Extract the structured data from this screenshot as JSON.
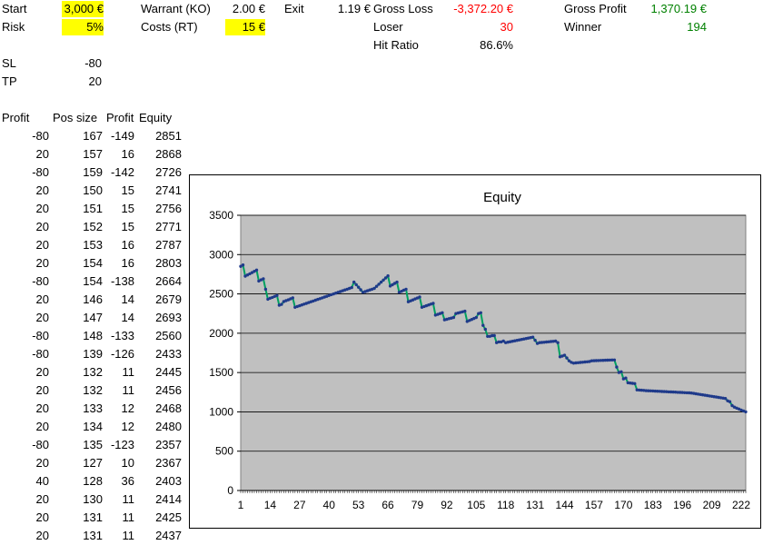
{
  "params": {
    "start_label": "Start",
    "start_value": "3,000 €",
    "risk_label": "Risk",
    "risk_value": "5%",
    "warrant_label": "Warrant (KO)",
    "warrant_value": "2.00 €",
    "costs_label": "Costs (RT)",
    "costs_value": "15 €",
    "exit_label": "Exit",
    "exit_value": "1.19 €",
    "sl_label": "SL",
    "sl_value": "-80",
    "tp_label": "TP",
    "tp_value": "20"
  },
  "stats": {
    "gross_loss_label": "Gross Loss",
    "gross_loss_value": "-3,372.20 €",
    "loser_label": "Loser",
    "loser_value": "30",
    "hit_ratio_label": "Hit Ratio",
    "hit_ratio_value": "86.6%",
    "gross_profit_label": "Gross Profit",
    "gross_profit_value": "1,370.19 €",
    "winner_label": "Winner",
    "winner_value": "194"
  },
  "table": {
    "headers": [
      "Profit",
      "Pos size",
      "Profit",
      "Equity"
    ],
    "rows": [
      [
        "-80",
        "167",
        "-149",
        "2851"
      ],
      [
        "20",
        "157",
        "16",
        "2868"
      ],
      [
        "-80",
        "159",
        "-142",
        "2726"
      ],
      [
        "20",
        "150",
        "15",
        "2741"
      ],
      [
        "20",
        "151",
        "15",
        "2756"
      ],
      [
        "20",
        "152",
        "15",
        "2771"
      ],
      [
        "20",
        "153",
        "16",
        "2787"
      ],
      [
        "20",
        "154",
        "16",
        "2803"
      ],
      [
        "-80",
        "154",
        "-138",
        "2664"
      ],
      [
        "20",
        "146",
        "14",
        "2679"
      ],
      [
        "20",
        "147",
        "14",
        "2693"
      ],
      [
        "-80",
        "148",
        "-133",
        "2560"
      ],
      [
        "-80",
        "139",
        "-126",
        "2433"
      ],
      [
        "20",
        "132",
        "11",
        "2445"
      ],
      [
        "20",
        "132",
        "11",
        "2456"
      ],
      [
        "20",
        "133",
        "12",
        "2468"
      ],
      [
        "20",
        "134",
        "12",
        "2480"
      ],
      [
        "-80",
        "135",
        "-123",
        "2357"
      ],
      [
        "20",
        "127",
        "10",
        "2367"
      ],
      [
        "40",
        "128",
        "36",
        "2403"
      ],
      [
        "20",
        "130",
        "11",
        "2414"
      ],
      [
        "20",
        "131",
        "11",
        "2425"
      ],
      [
        "20",
        "131",
        "11",
        "2437"
      ]
    ]
  },
  "chart_data": {
    "type": "line",
    "title": "Equity",
    "xlabel": "",
    "ylabel": "",
    "ylim": [
      0,
      3500
    ],
    "xlim": [
      1,
      224
    ],
    "yticks": [
      "0",
      "500",
      "1000",
      "1500",
      "2000",
      "2500",
      "3000",
      "3500"
    ],
    "xticks": [
      "1",
      "14",
      "27",
      "40",
      "53",
      "66",
      "79",
      "92",
      "105",
      "118",
      "131",
      "144",
      "157",
      "170",
      "183",
      "196",
      "209",
      "222"
    ],
    "grid": "horizontal",
    "legend": "none",
    "plot_background": "#c0c0c0",
    "line_color": "#00a060",
    "marker_color": "#1f3a8a",
    "series": [
      {
        "x": [
          1,
          2,
          3,
          4,
          5,
          6,
          7,
          8,
          9,
          10,
          11,
          12,
          13,
          14,
          15,
          16,
          17,
          18,
          19,
          20,
          21,
          22,
          23,
          24,
          25,
          30,
          40,
          50,
          51,
          55,
          60,
          66,
          67,
          70,
          71,
          74,
          75,
          80,
          81,
          86,
          87,
          90,
          91,
          95,
          96,
          100,
          101,
          105,
          106,
          107,
          108,
          109,
          110,
          111,
          112,
          113,
          114,
          115,
          116,
          117,
          118,
          130,
          132,
          133,
          140,
          141,
          142,
          143,
          144,
          146,
          147,
          148,
          155,
          156,
          165,
          166,
          167,
          168,
          169,
          170,
          171,
          172,
          175,
          176,
          180,
          200,
          215,
          216,
          217,
          218,
          219,
          224
        ],
        "values": [
          2851,
          2868,
          2726,
          2741,
          2756,
          2771,
          2787,
          2803,
          2664,
          2679,
          2693,
          2560,
          2433,
          2445,
          2456,
          2468,
          2480,
          2357,
          2367,
          2403,
          2414,
          2425,
          2437,
          2450,
          2330,
          2380,
          2480,
          2580,
          2650,
          2520,
          2570,
          2730,
          2600,
          2650,
          2520,
          2560,
          2400,
          2460,
          2330,
          2380,
          2230,
          2260,
          2170,
          2200,
          2250,
          2280,
          2150,
          2200,
          2250,
          2260,
          2100,
          2050,
          1960,
          1960,
          1970,
          1970,
          1880,
          1890,
          1890,
          1900,
          1880,
          1950,
          1870,
          1880,
          1900,
          1880,
          1700,
          1710,
          1720,
          1650,
          1630,
          1620,
          1640,
          1650,
          1660,
          1660,
          1570,
          1500,
          1510,
          1420,
          1430,
          1370,
          1360,
          1280,
          1270,
          1240,
          1170,
          1140,
          1130,
          1080,
          1060,
          1000
        ]
      }
    ]
  }
}
